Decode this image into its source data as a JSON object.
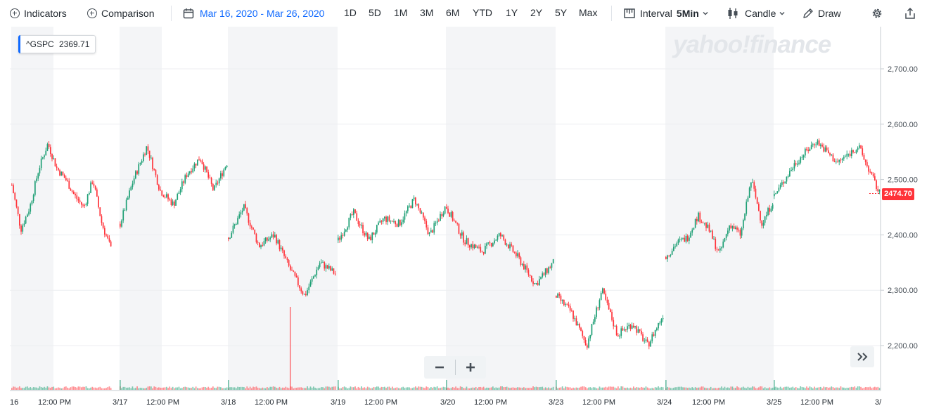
{
  "toolbar": {
    "indicators_label": "Indicators",
    "comparison_label": "Comparison",
    "date_range": "Mar 16, 2020 - Mar 26, 2020",
    "ranges": [
      "1D",
      "5D",
      "1M",
      "3M",
      "6M",
      "YTD",
      "1Y",
      "2Y",
      "5Y",
      "Max"
    ],
    "interval_label": "Interval",
    "interval_value": "5Min",
    "chart_type_label": "Candle",
    "draw_label": "Draw"
  },
  "tooltip": {
    "symbol": "^GSPC",
    "value": "2369.71"
  },
  "watermark": "yahoo!finance",
  "last_price": "2474.70",
  "colors": {
    "up": "#1e9f75",
    "down": "#ff333a",
    "accent": "#0f69ff",
    "shade": "#f4f5f7"
  },
  "icons": {
    "indicators": "plus-circle-icon",
    "comparison": "plus-circle-icon",
    "calendar": "calendar-icon",
    "interval": "ruler-icon",
    "candle": "candlestick-icon",
    "draw": "pencil-icon",
    "settings": "gear-icon",
    "share": "share-icon",
    "zoom_out": "minus-icon",
    "zoom_in": "plus-icon",
    "scroll_right": "double-chevron-right-icon"
  },
  "chart_data": {
    "type": "candlestick",
    "series_name": "^GSPC",
    "ylim": [
      2120,
      2780
    ],
    "y_ticks": [
      "2,700.00",
      "2,600.00",
      "2,500.00",
      "2,400.00",
      "2,300.00",
      "2,200.00"
    ],
    "x_ticks": [
      "16",
      "12:00 PM",
      "3/17",
      "12:00 PM",
      "3/18",
      "12:00 PM",
      "3/19",
      "12:00 PM",
      "3/20",
      "12:00 PM",
      "3/23",
      "12:00 PM",
      "3/24",
      "12:00 PM",
      "3/25",
      "12:00 PM",
      "3/"
    ],
    "grid": true,
    "path_points": [
      [
        "3/16 open",
        2490
      ],
      [
        "3/16",
        2410
      ],
      [
        "3/16",
        2450
      ],
      [
        "3/16",
        2520
      ],
      [
        "3/16",
        2565
      ],
      [
        "3/16",
        2520
      ],
      [
        "3/16",
        2500
      ],
      [
        "3/16",
        2470
      ],
      [
        "3/16",
        2450
      ],
      [
        "3/16",
        2500
      ],
      [
        "3/16",
        2420
      ],
      [
        "3/16 close",
        2375
      ],
      [
        "3/17 open",
        2420
      ],
      [
        "3/17",
        2500
      ],
      [
        "3/17",
        2560
      ],
      [
        "3/17",
        2480
      ],
      [
        "3/17",
        2455
      ],
      [
        "3/17",
        2510
      ],
      [
        "3/17",
        2540
      ],
      [
        "3/17",
        2480
      ],
      [
        "3/17 close",
        2530
      ],
      [
        "3/18 open",
        2395
      ],
      [
        "3/18",
        2450
      ],
      [
        "3/18",
        2380
      ],
      [
        "3/18",
        2400
      ],
      [
        "3/18",
        2340
      ],
      [
        "3/18",
        2290
      ],
      [
        "3/18",
        2350
      ],
      [
        "3/18 close",
        2330
      ],
      [
        "3/19 open",
        2390
      ],
      [
        "3/19",
        2440
      ],
      [
        "3/19",
        2390
      ],
      [
        "3/19",
        2430
      ],
      [
        "3/19",
        2420
      ],
      [
        "3/19",
        2465
      ],
      [
        "3/19",
        2400
      ],
      [
        "3/19 close",
        2450
      ],
      [
        "3/20 open",
        2450
      ],
      [
        "3/20",
        2390
      ],
      [
        "3/20",
        2370
      ],
      [
        "3/20",
        2400
      ],
      [
        "3/20",
        2360
      ],
      [
        "3/20",
        2310
      ],
      [
        "3/20 close",
        2350
      ],
      [
        "3/23 open",
        2290
      ],
      [
        "3/23",
        2260
      ],
      [
        "3/23",
        2200
      ],
      [
        "3/23",
        2300
      ],
      [
        "3/23",
        2220
      ],
      [
        "3/23",
        2240
      ],
      [
        "3/23",
        2200
      ],
      [
        "3/23 close",
        2255
      ],
      [
        "3/24 open",
        2360
      ],
      [
        "3/24",
        2385
      ],
      [
        "3/24",
        2395
      ],
      [
        "3/24",
        2435
      ],
      [
        "3/24",
        2410
      ],
      [
        "3/24",
        2365
      ],
      [
        "3/24",
        2420
      ],
      [
        "3/24",
        2400
      ],
      [
        "3/24",
        2500
      ],
      [
        "3/24",
        2420
      ],
      [
        "3/24 close",
        2460
      ],
      [
        "3/25 open",
        2470
      ],
      [
        "3/25",
        2530
      ],
      [
        "3/25",
        2570
      ],
      [
        "3/25",
        2530
      ],
      [
        "3/25",
        2560
      ],
      [
        "3/25 close",
        2474.7
      ]
    ],
    "volume_spike_at": "3/18 12:00 PM",
    "last_value": 2474.7
  }
}
